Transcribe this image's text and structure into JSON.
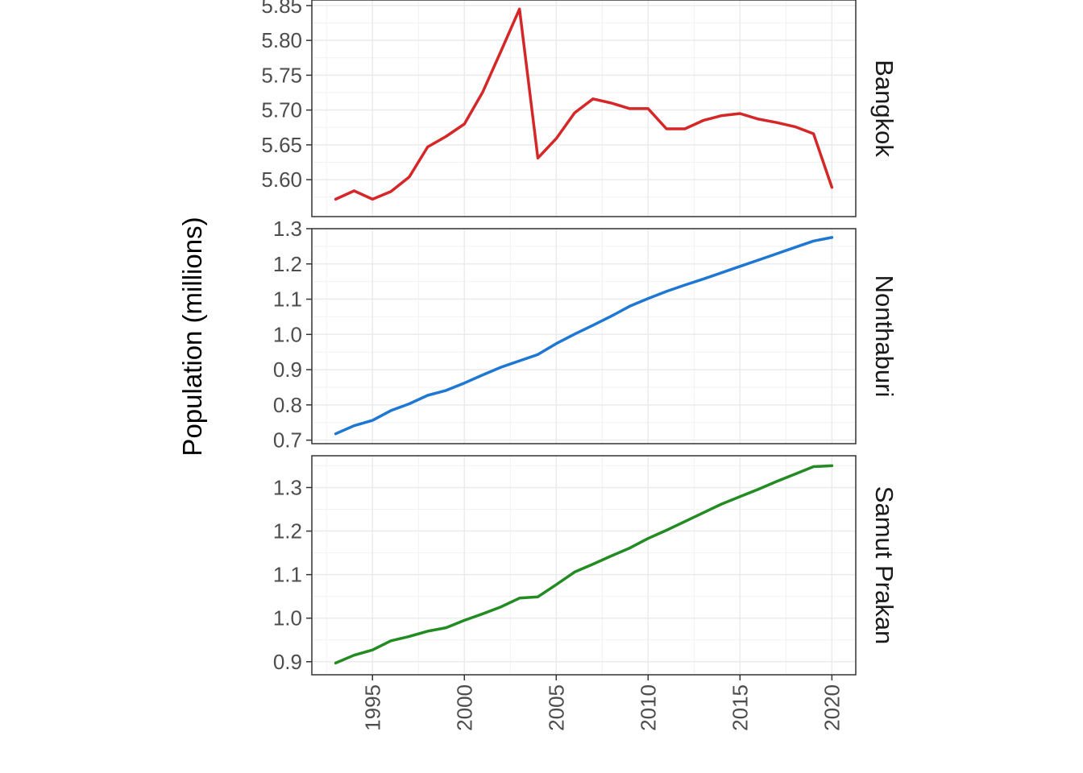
{
  "chart_data": {
    "type": "line",
    "ylabel": "Population (millions)",
    "xlabel": "",
    "x_ticks": [
      1995,
      2000,
      2005,
      2010,
      2015,
      2020
    ],
    "x": [
      1993,
      1994,
      1995,
      1996,
      1997,
      1998,
      1999,
      2000,
      2001,
      2002,
      2003,
      2004,
      2005,
      2006,
      2007,
      2008,
      2009,
      2010,
      2011,
      2012,
      2013,
      2014,
      2015,
      2016,
      2017,
      2018,
      2019,
      2020
    ],
    "xlim": [
      1991.7,
      2021.3
    ],
    "grid": true,
    "legend": "none",
    "panels": [
      {
        "name": "Bangkok",
        "color": "#d62728",
        "ylim": [
          5.547,
          5.858
        ],
        "y_ticks": [
          "5.60",
          "5.65",
          "5.70",
          "5.75",
          "5.80",
          "5.85"
        ],
        "values": [
          5.572,
          5.584,
          5.572,
          5.583,
          5.604,
          5.647,
          5.662,
          5.68,
          5.726,
          5.785,
          5.845,
          5.631,
          5.659,
          5.696,
          5.716,
          5.71,
          5.702,
          5.702,
          5.673,
          5.673,
          5.685,
          5.692,
          5.695,
          5.687,
          5.682,
          5.676,
          5.666,
          5.589
        ]
      },
      {
        "name": "Nonthaburi",
        "color": "#1f77d4",
        "ylim": [
          0.69,
          1.3
        ],
        "y_ticks": [
          "0.7",
          "0.8",
          "0.9",
          "1.0",
          "1.1",
          "1.2",
          "1.3"
        ],
        "values": [
          0.718,
          0.741,
          0.756,
          0.784,
          0.803,
          0.827,
          0.841,
          0.862,
          0.885,
          0.907,
          0.925,
          0.943,
          0.974,
          1.001,
          1.026,
          1.052,
          1.08,
          1.102,
          1.122,
          1.14,
          1.157,
          1.175,
          1.193,
          1.211,
          1.229,
          1.247,
          1.265,
          1.275
        ]
      },
      {
        "name": "Samut Prakan",
        "color": "#228b22",
        "ylim": [
          0.87,
          1.373
        ],
        "y_ticks": [
          "0.9",
          "1.0",
          "1.1",
          "1.2",
          "1.3"
        ],
        "values": [
          0.897,
          0.915,
          0.927,
          0.948,
          0.958,
          0.97,
          0.978,
          0.995,
          1.01,
          1.026,
          1.046,
          1.049,
          1.077,
          1.106,
          1.124,
          1.143,
          1.161,
          1.183,
          1.202,
          1.222,
          1.242,
          1.262,
          1.279,
          1.296,
          1.314,
          1.331,
          1.348,
          1.35
        ]
      }
    ]
  }
}
